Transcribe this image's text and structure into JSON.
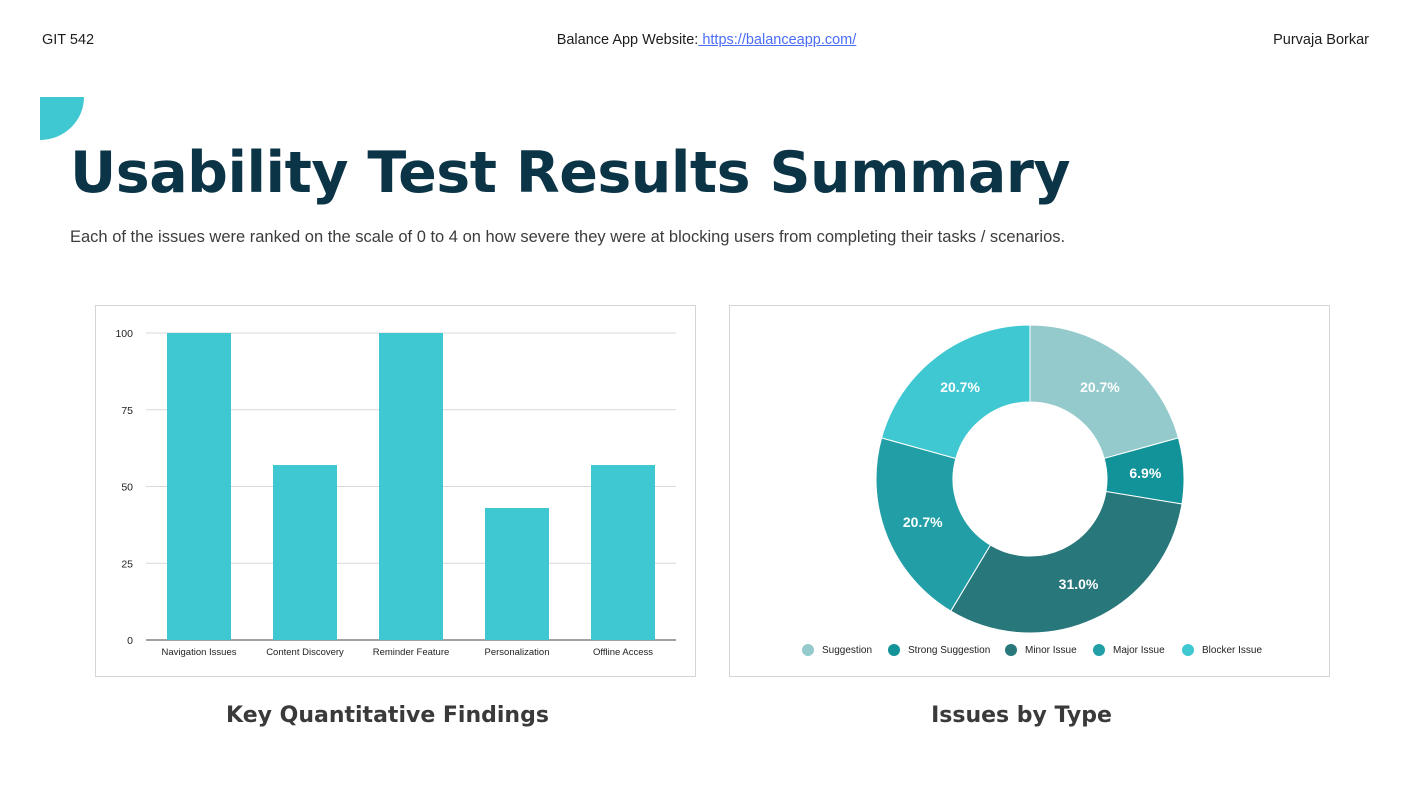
{
  "header": {
    "course": "GIT 542",
    "website_label": "Balance App Website:",
    "website_link": " https://balanceapp.com/",
    "author": "Purvaja Borkar"
  },
  "title": "Usability Test Results Summary",
  "subtitle": "Each of the issues were ranked on the scale of 0 to 4 on how severe they were at blocking users from completing their tasks / scenarios.",
  "colors": {
    "accent": "#40c8d2",
    "title": "#0b3447",
    "link": "#4a6cf7"
  },
  "chart_data": [
    {
      "type": "bar",
      "categories": [
        "Navigation Issues",
        "Content Discovery",
        "Reminder Feature",
        "Personalization",
        "Offline Access"
      ],
      "values": [
        100,
        57,
        100,
        43,
        57
      ],
      "ylim": [
        0,
        100
      ],
      "yticks": [
        0,
        25,
        50,
        75,
        100
      ],
      "grid": true,
      "bar_color": "#40c8d2",
      "title": "Key Quantitative Findings"
    },
    {
      "type": "pie",
      "donut": true,
      "labels": [
        "Suggestion",
        "Strong Suggestion",
        "Minor Issue",
        "Major Issue",
        "Blocker Issue"
      ],
      "values": [
        20.7,
        6.9,
        31.0,
        20.7,
        20.7
      ],
      "value_labels": [
        "20.7%",
        "6.9%",
        "31.0%",
        "20.7%",
        "20.7%"
      ],
      "colors": [
        "#94cacc",
        "#12939a",
        "#28777b",
        "#229fa6",
        "#40c8d2"
      ],
      "legend_position": "bottom",
      "title": "Issues by Type"
    }
  ]
}
